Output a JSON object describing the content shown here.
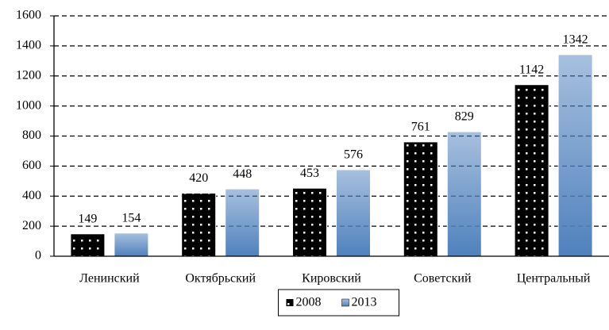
{
  "chart_data": {
    "type": "bar",
    "categories": [
      "Ленинский",
      "Октябрьский",
      "Кировский",
      "Советский",
      "Центральный"
    ],
    "series": [
      {
        "name": "2008",
        "color": "#000000",
        "values": [
          149,
          420,
          453,
          761,
          1142
        ]
      },
      {
        "name": "2013",
        "color": "#4f81bd",
        "values": [
          154,
          448,
          576,
          829,
          1342
        ]
      }
    ],
    "ylim": [
      0,
      1600
    ],
    "yticks": [
      0,
      200,
      400,
      600,
      800,
      1000,
      1200,
      1400,
      1600
    ],
    "grid": true,
    "legend": "bottom"
  }
}
